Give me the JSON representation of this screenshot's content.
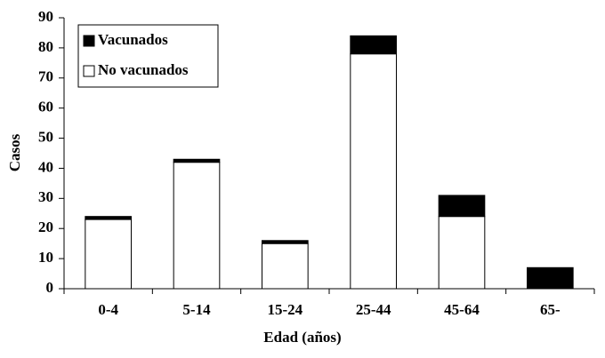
{
  "chart_data": {
    "type": "stacked_bar",
    "xlabel": "Edad (años)",
    "ylabel": "Casos",
    "categories": [
      "0-4",
      "5-14",
      "15-24",
      "25-44",
      "45-64",
      "65-"
    ],
    "series": [
      {
        "name": "Vacunados",
        "color": "#000000",
        "values": [
          1,
          1,
          1,
          6,
          7,
          7
        ]
      },
      {
        "name": "No vacunados",
        "color": "#ffffff",
        "values": [
          23,
          42,
          15,
          78,
          24,
          0
        ]
      }
    ],
    "ylim": [
      0,
      90
    ],
    "yticks": [
      0,
      10,
      20,
      30,
      40,
      50,
      60,
      70,
      80,
      90
    ],
    "grid": false,
    "legend": "upper left"
  }
}
